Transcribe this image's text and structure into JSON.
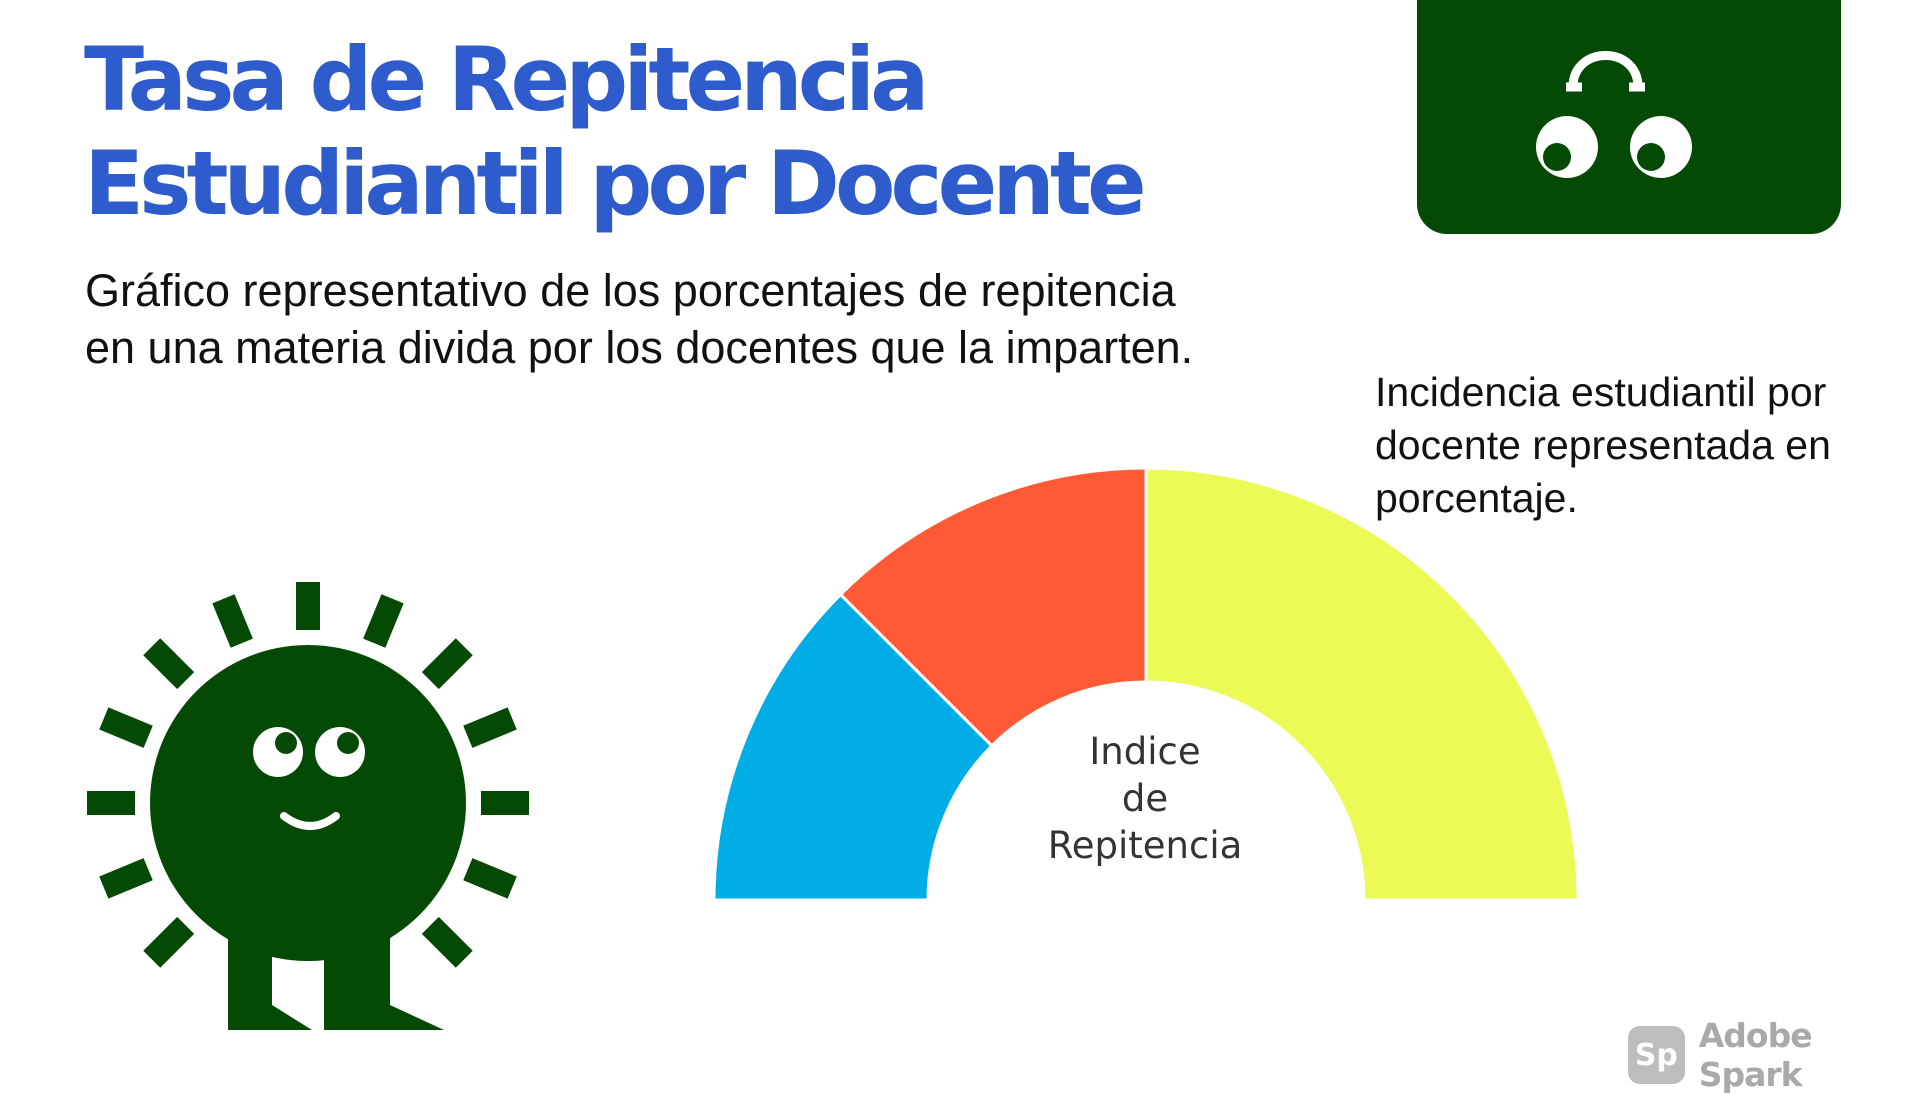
{
  "title_lines": [
    "Tasa de Repitencia",
    "Estudiantil por Docente"
  ],
  "subtitle": "Gráfico representativo de los porcentajes de repitencia en una materia divida por los docentes que la imparten.",
  "side_note": "Incidencia estudiantil por docente representada en porcentaje.",
  "brand": {
    "mark": "Sp",
    "name": "Adobe Spark"
  },
  "chart_data": {
    "type": "pie",
    "variant": "half-donut gauge",
    "center_label": [
      "Indice",
      "de",
      "Repitencia"
    ],
    "series": [
      {
        "value": 25,
        "color": "#00ade5"
      },
      {
        "value": 25,
        "color": "#ff5a36"
      },
      {
        "value": 50,
        "color": "#ebfa54"
      }
    ],
    "legend": false
  },
  "colors": {
    "title": "#2f5ccc",
    "character": "#044a05",
    "text": "#111111"
  },
  "icons": [
    "sun-character-icon",
    "peeking-eyes-icon"
  ]
}
